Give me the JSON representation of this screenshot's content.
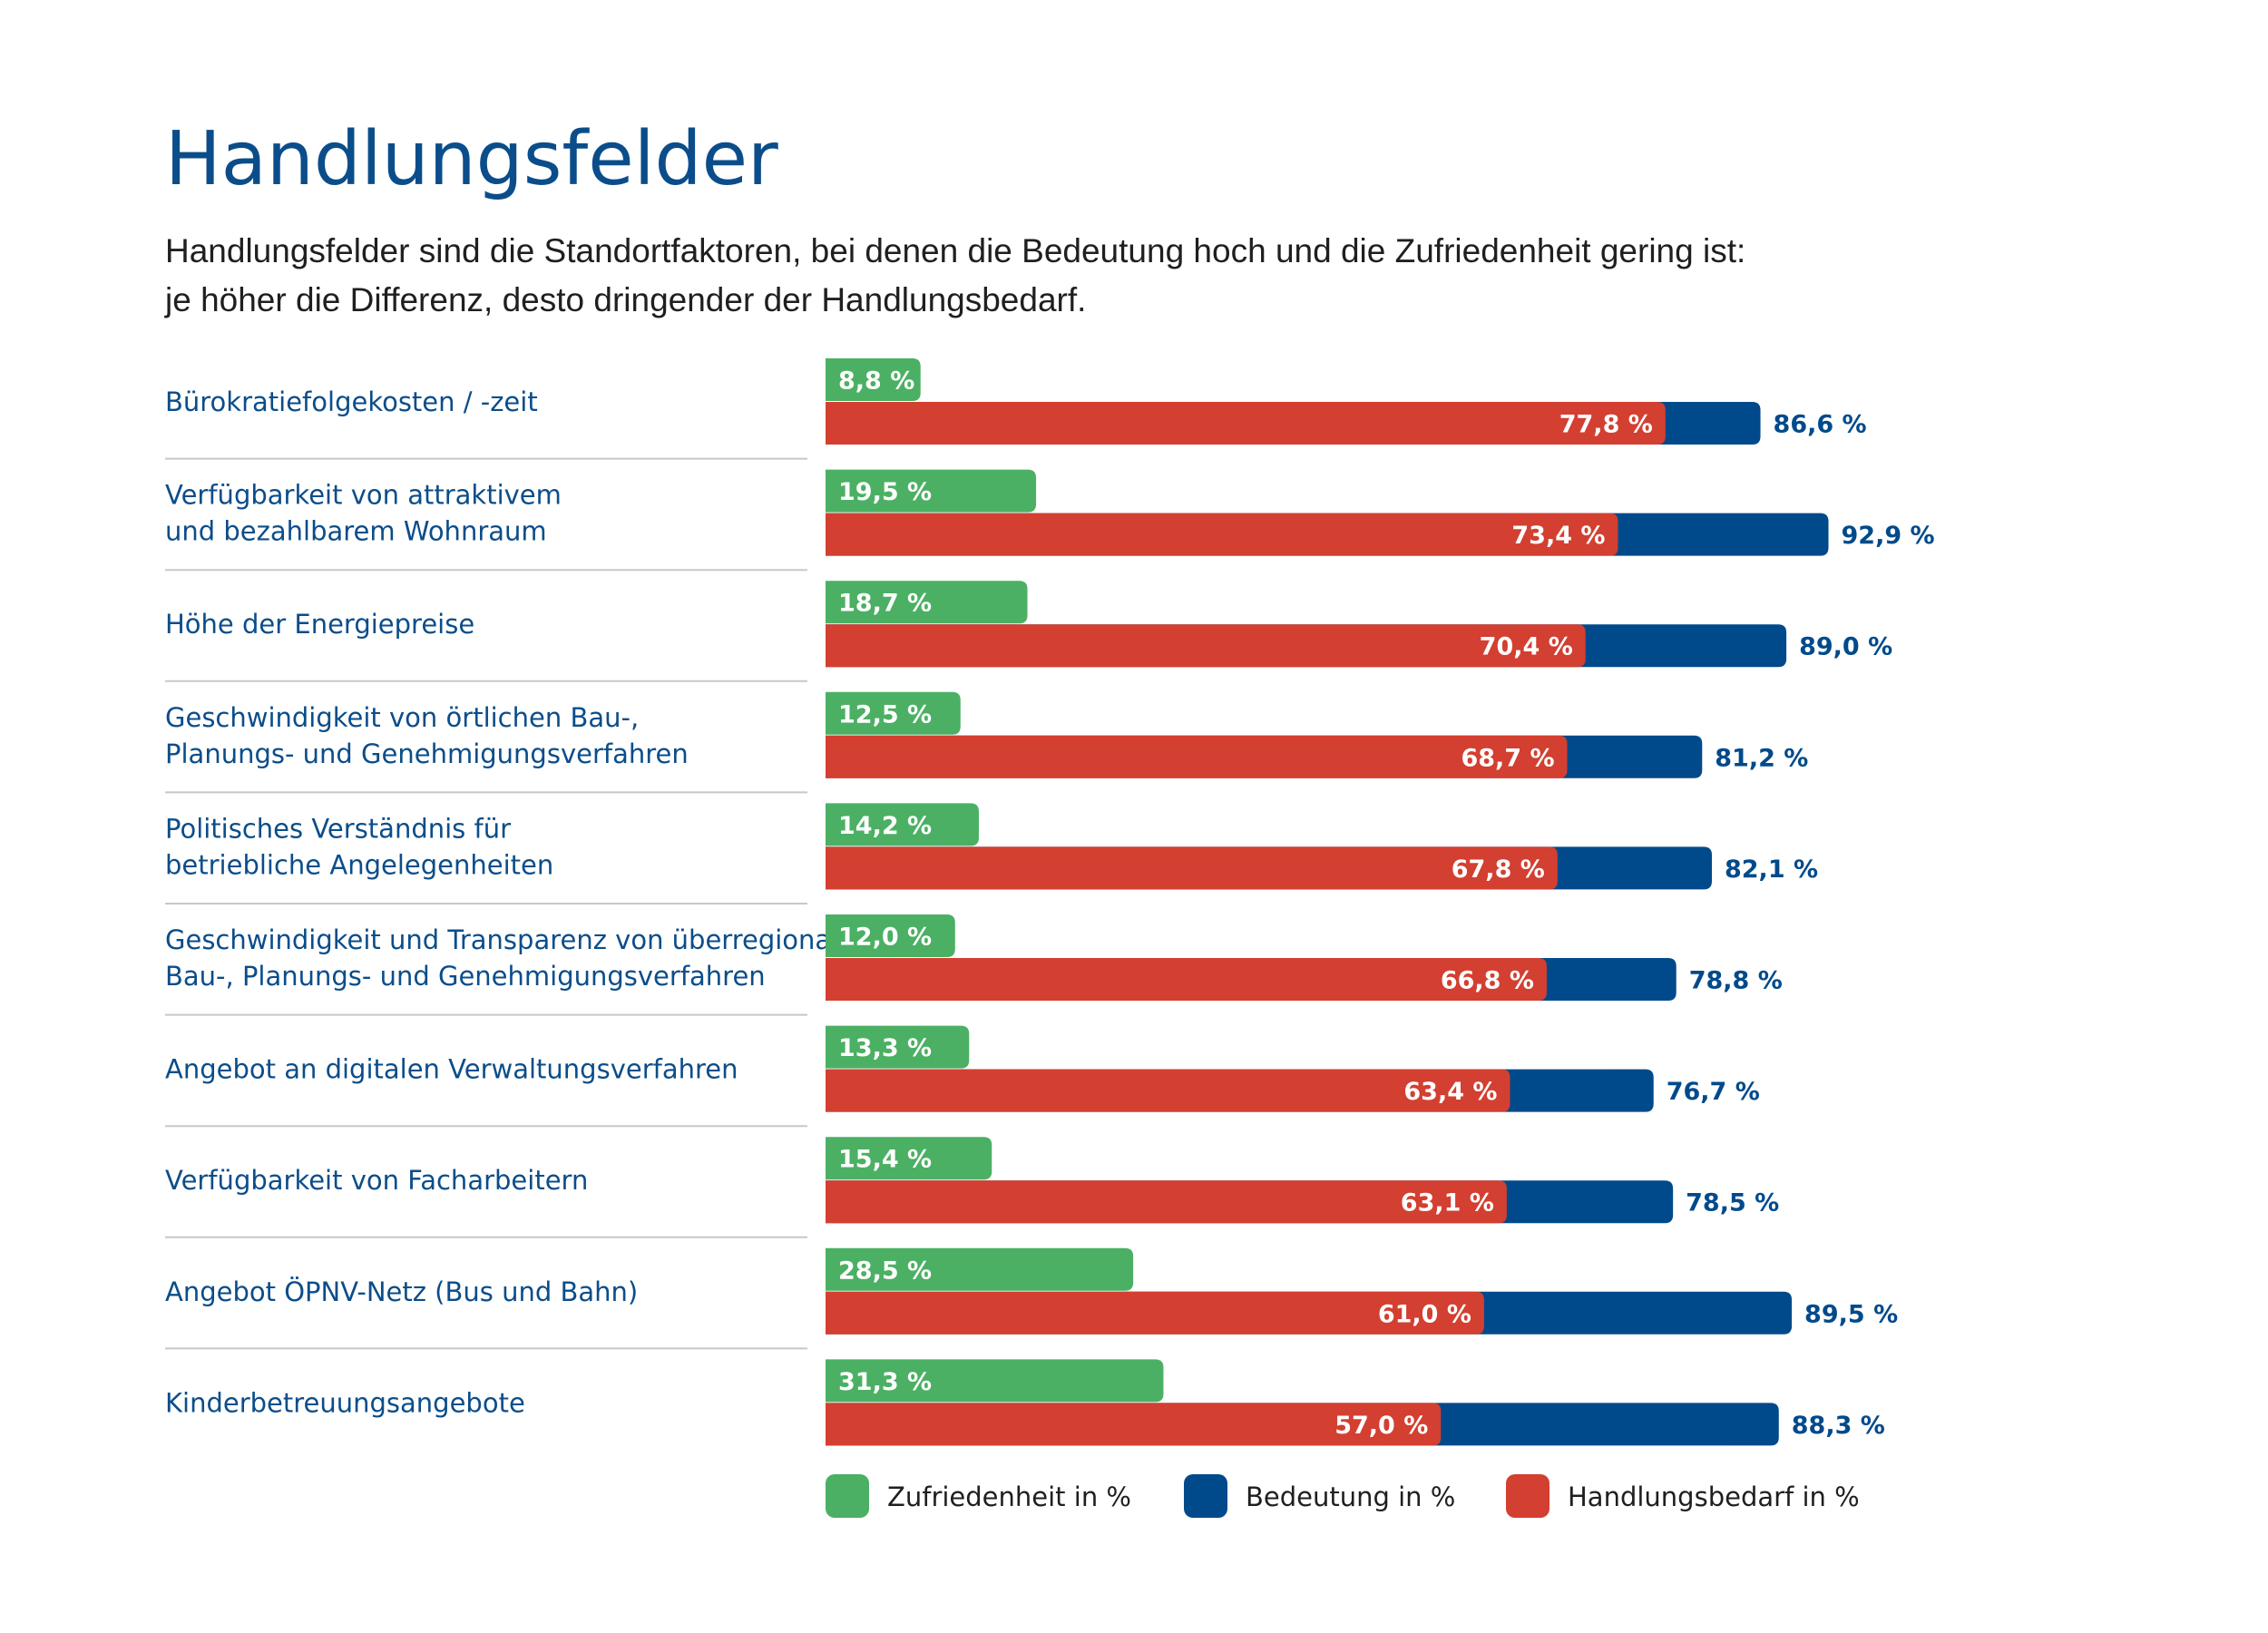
{
  "header": {
    "title": "Handlungsfelder",
    "subtitle": "Handlungsfelder sind die Standortfaktoren, bei denen die Bedeutung hoch und die Zufriedenheit gering ist: je höher die Differenz, desto dringender der Handlungsbedarf."
  },
  "colors": {
    "green": "#4bb063",
    "blue": "#004a8b",
    "red": "#d33f30",
    "title": "#0b4d8a",
    "divider": "#c8c8c8"
  },
  "chart_data": {
    "type": "bar",
    "title": "Handlungsfelder",
    "xlabel": "",
    "ylabel": "",
    "xlim": [
      0,
      100
    ],
    "value_suffix": " %",
    "categories": [
      [
        "Bürokratiefolgekosten / -zeit"
      ],
      [
        "Verfügbarkeit von attraktivem",
        "und bezahlbarem Wohnraum"
      ],
      [
        "Höhe der Energiepreise"
      ],
      [
        "Geschwindigkeit von örtlichen Bau-,",
        "Planungs- und Genehmigungsverfahren"
      ],
      [
        "Politisches Verständnis für",
        "betriebliche Angelegenheiten"
      ],
      [
        "Geschwindigkeit und Transparenz von überregionalen",
        "Bau-, Planungs- und Genehmigungsverfahren"
      ],
      [
        "Angebot an digitalen Verwaltungsverfahren"
      ],
      [
        "Verfügbarkeit von Facharbeitern"
      ],
      [
        "Angebot ÖPNV-Netz (Bus und Bahn)"
      ],
      [
        "Kinderbetreuungsangebote"
      ]
    ],
    "series": [
      {
        "name": "Zufriedenheit in %",
        "key": "zufriedenheit",
        "color": "#4bb063",
        "values": [
          8.8,
          19.5,
          18.7,
          12.5,
          14.2,
          12.0,
          13.3,
          15.4,
          28.5,
          31.3
        ]
      },
      {
        "name": "Bedeutung in %",
        "key": "bedeutung",
        "color": "#004a8b",
        "values": [
          86.6,
          92.9,
          89.0,
          81.2,
          82.1,
          78.8,
          76.7,
          78.5,
          89.5,
          88.3
        ]
      },
      {
        "name": "Handlungsbedarf in %",
        "key": "handlungsbedarf",
        "color": "#d33f30",
        "values": [
          77.8,
          73.4,
          70.4,
          68.7,
          67.8,
          66.8,
          63.4,
          63.1,
          61.0,
          57.0
        ]
      }
    ],
    "legend": {
      "placement": "bottom",
      "items": [
        "Zufriedenheit in %",
        "Bedeutung in %",
        "Handlungsbedarf in %"
      ]
    }
  }
}
